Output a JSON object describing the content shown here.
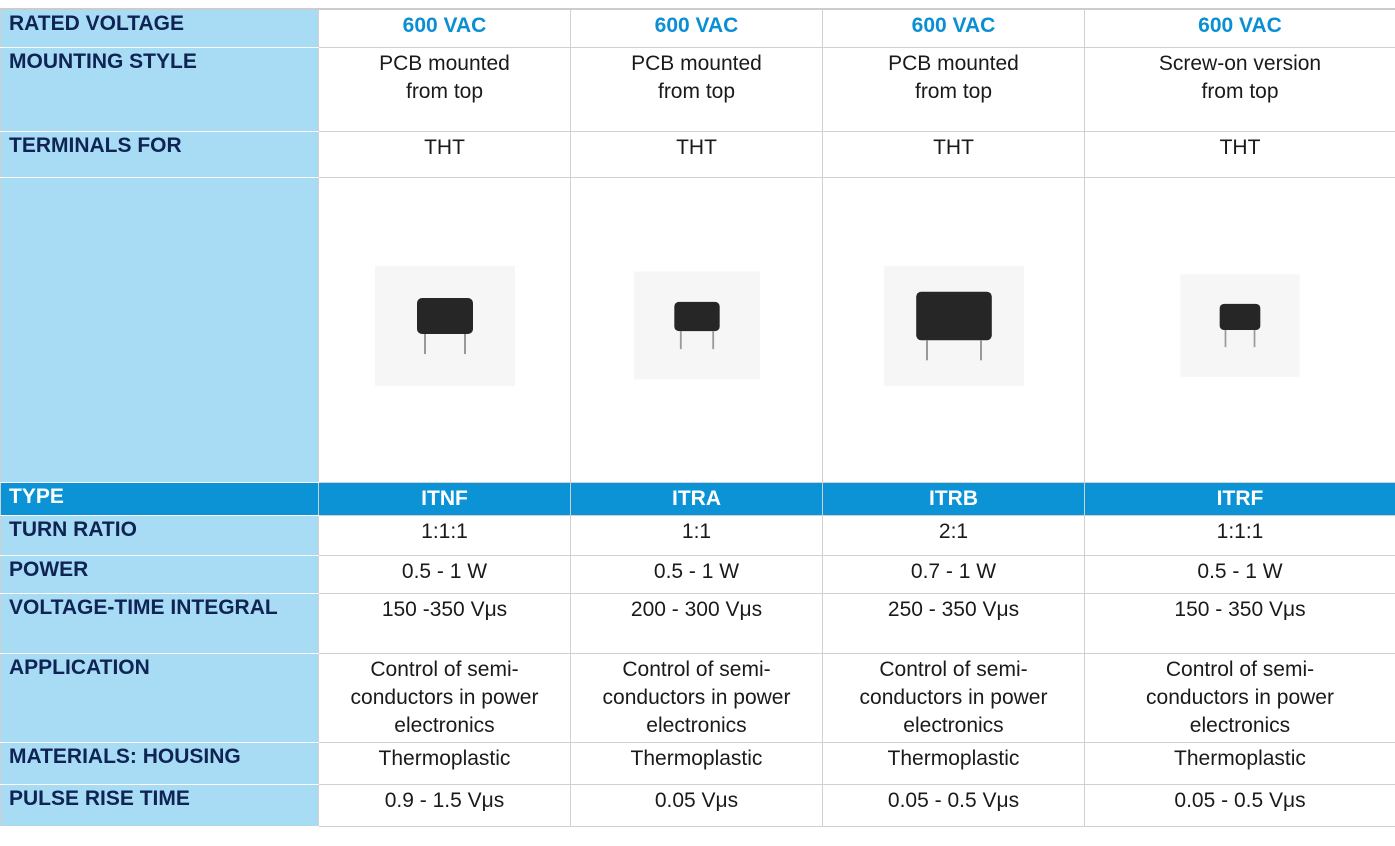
{
  "table": {
    "top_rows": [
      {
        "label": "RATED VOLTAGE",
        "cells": [
          [
            "600 VAC"
          ],
          [
            "600 VAC"
          ],
          [
            "600 VAC"
          ],
          [
            "600 VAC"
          ]
        ]
      },
      {
        "label": "MOUNTING STYLE",
        "cells": [
          [
            "PCB mounted",
            "from top"
          ],
          [
            "PCB mounted",
            "from top"
          ],
          [
            "PCB mounted",
            "from top"
          ],
          [
            "Screw-on version",
            "from top"
          ]
        ]
      },
      {
        "label": "TERMINALS FOR",
        "cells": [
          [
            "THT"
          ],
          [
            "THT"
          ],
          [
            "THT"
          ],
          [
            "THT"
          ]
        ]
      }
    ],
    "type_row": {
      "label": "TYPE",
      "cells": [
        "ITNF",
        "ITRA",
        "ITRB",
        "ITRF"
      ]
    },
    "bottom_rows": [
      {
        "label": "TURN RATIO",
        "cells": [
          [
            "1:1:1"
          ],
          [
            "1:1"
          ],
          [
            "2:1"
          ],
          [
            "1:1:1"
          ]
        ]
      },
      {
        "label": "POWER",
        "cells": [
          [
            "0.5 - 1 W"
          ],
          [
            "0.5 - 1 W"
          ],
          [
            "0.7 - 1 W"
          ],
          [
            "0.5 - 1 W"
          ]
        ]
      },
      {
        "label": "VOLTAGE-TIME INTEGRAL",
        "cells": [
          [
            "150 -350 Vμs"
          ],
          [
            "200 - 300 Vμs"
          ],
          [
            "250 - 350 Vμs"
          ],
          [
            "150 - 350 Vμs"
          ]
        ]
      },
      {
        "label": "APPLICATION",
        "cells": [
          [
            "Control of semi-",
            "conductors in power",
            "electronics"
          ],
          [
            "Control of semi-",
            "conductors in power",
            "electronics"
          ],
          [
            "Control of semi-",
            "conductors in power",
            "electronics"
          ],
          [
            "Control of semi-",
            "conductors in power",
            "electronics"
          ]
        ]
      },
      {
        "label": "MATERIALS: HOUSING",
        "cells": [
          [
            "Thermoplastic"
          ],
          [
            "Thermoplastic"
          ],
          [
            "Thermoplastic"
          ],
          [
            "Thermoplastic"
          ]
        ]
      },
      {
        "label": "PULSE RISE TIME",
        "cells": [
          [
            "0.9 - 1.5 Vμs"
          ],
          [
            "0.05 Vμs"
          ],
          [
            "0.05 - 0.5 Vμs"
          ],
          [
            "0.05 - 0.5 Vμs"
          ]
        ]
      }
    ]
  }
}
